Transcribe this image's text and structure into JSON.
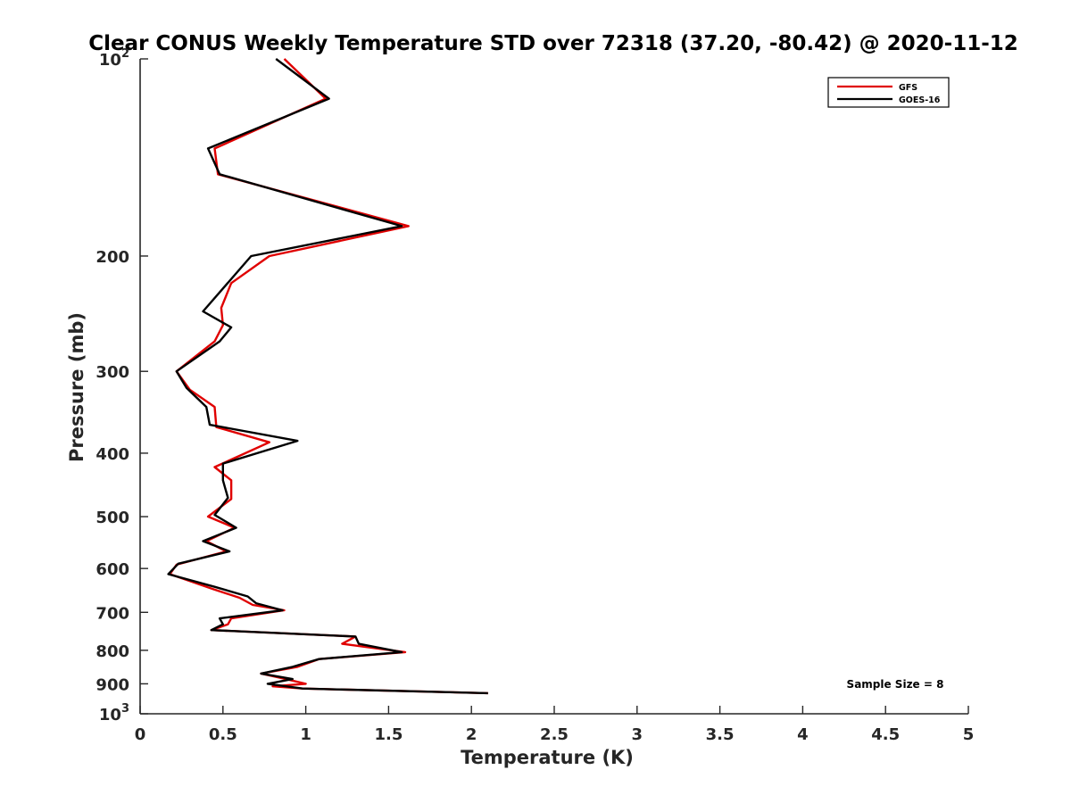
{
  "chart_data": {
    "type": "line",
    "title": "Clear CONUS Weekly Temperature STD over 72318 (37.20, -80.42) @ 2020-11-12",
    "xlabel": "Temperature (K)",
    "ylabel": "Pressure (mb)",
    "xlim": [
      0,
      5
    ],
    "ylim": [
      100,
      1000
    ],
    "yscale": "log",
    "y_reversed": true,
    "x_ticks": [
      "0",
      "0.5",
      "1",
      "1.5",
      "2",
      "2.5",
      "3",
      "3.5",
      "4",
      "4.5",
      "5"
    ],
    "y_ticks": [
      {
        "value": 100,
        "label": "10",
        "sup": "2"
      },
      {
        "value": 200,
        "label": "200"
      },
      {
        "value": 300,
        "label": "300"
      },
      {
        "value": 400,
        "label": "400"
      },
      {
        "value": 500,
        "label": "500"
      },
      {
        "value": 600,
        "label": "600"
      },
      {
        "value": 700,
        "label": "700"
      },
      {
        "value": 800,
        "label": "800"
      },
      {
        "value": 900,
        "label": "900"
      },
      {
        "value": 1000,
        "label": "10",
        "sup": "3"
      }
    ],
    "grid": false,
    "legend_position": "top-right",
    "series": [
      {
        "name": "GFS",
        "color": "#e00000",
        "points": [
          [
            0.87,
            100
          ],
          [
            1.12,
            115
          ],
          [
            0.45,
            137
          ],
          [
            0.47,
            150
          ],
          [
            1.62,
            180
          ],
          [
            0.78,
            200
          ],
          [
            0.55,
            220
          ],
          [
            0.49,
            240
          ],
          [
            0.5,
            255
          ],
          [
            0.45,
            270
          ],
          [
            0.22,
            300
          ],
          [
            0.3,
            320
          ],
          [
            0.45,
            340
          ],
          [
            0.46,
            365
          ],
          [
            0.78,
            385
          ],
          [
            0.45,
            420
          ],
          [
            0.55,
            440
          ],
          [
            0.55,
            470
          ],
          [
            0.41,
            500
          ],
          [
            0.57,
            520
          ],
          [
            0.4,
            545
          ],
          [
            0.52,
            565
          ],
          [
            0.22,
            592
          ],
          [
            0.18,
            612
          ],
          [
            0.44,
            645
          ],
          [
            0.6,
            665
          ],
          [
            0.68,
            682
          ],
          [
            0.87,
            695
          ],
          [
            0.55,
            715
          ],
          [
            0.53,
            730
          ],
          [
            0.43,
            745
          ],
          [
            1.3,
            762
          ],
          [
            1.22,
            782
          ],
          [
            1.6,
            805
          ],
          [
            1.08,
            825
          ],
          [
            0.95,
            848
          ],
          [
            0.73,
            868
          ],
          [
            0.88,
            885
          ],
          [
            1.0,
            900
          ],
          [
            0.8,
            908
          ],
          [
            0.98,
            915
          ],
          [
            2.1,
            930
          ]
        ]
      },
      {
        "name": "GOES-16",
        "color": "#000000",
        "points": [
          [
            0.82,
            100
          ],
          [
            1.14,
            115
          ],
          [
            0.41,
            137
          ],
          [
            0.48,
            150
          ],
          [
            1.58,
            180
          ],
          [
            0.67,
            200
          ],
          [
            0.38,
            243
          ],
          [
            0.55,
            257
          ],
          [
            0.48,
            270
          ],
          [
            0.22,
            300
          ],
          [
            0.28,
            318
          ],
          [
            0.4,
            340
          ],
          [
            0.42,
            362
          ],
          [
            0.95,
            383
          ],
          [
            0.5,
            415
          ],
          [
            0.5,
            440
          ],
          [
            0.53,
            468
          ],
          [
            0.45,
            497
          ],
          [
            0.58,
            520
          ],
          [
            0.38,
            545
          ],
          [
            0.54,
            565
          ],
          [
            0.23,
            590
          ],
          [
            0.17,
            612
          ],
          [
            0.45,
            640
          ],
          [
            0.65,
            662
          ],
          [
            0.7,
            678
          ],
          [
            0.86,
            695
          ],
          [
            0.48,
            715
          ],
          [
            0.5,
            730
          ],
          [
            0.43,
            745
          ],
          [
            1.3,
            762
          ],
          [
            1.32,
            782
          ],
          [
            1.58,
            805
          ],
          [
            1.08,
            825
          ],
          [
            0.92,
            848
          ],
          [
            0.73,
            868
          ],
          [
            0.92,
            885
          ],
          [
            0.77,
            900
          ],
          [
            0.98,
            915
          ],
          [
            2.1,
            930
          ]
        ]
      }
    ],
    "annotation": "Sample Size = 8"
  }
}
